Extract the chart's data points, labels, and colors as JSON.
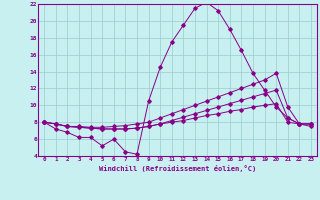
{
  "title": "",
  "xlabel": "Windchill (Refroidissement éolien,°C)",
  "ylabel": "",
  "bg_color": "#c8f0f0",
  "line_color": "#880088",
  "grid_color": "#99cccc",
  "xlim": [
    -0.5,
    23.5
  ],
  "ylim": [
    4,
    22
  ],
  "yticks": [
    4,
    6,
    8,
    10,
    12,
    14,
    16,
    18,
    20,
    22
  ],
  "xticks": [
    0,
    1,
    2,
    3,
    4,
    5,
    6,
    7,
    8,
    9,
    10,
    11,
    12,
    13,
    14,
    15,
    16,
    17,
    18,
    19,
    20,
    21,
    22,
    23
  ],
  "series": [
    [
      8.0,
      7.2,
      6.8,
      6.2,
      6.2,
      5.2,
      6.0,
      4.5,
      4.2,
      10.5,
      14.5,
      17.5,
      19.5,
      21.5,
      22.2,
      21.2,
      19.0,
      16.5,
      13.8,
      11.8,
      9.8,
      8.5,
      7.8,
      7.5
    ],
    [
      8.0,
      7.8,
      7.5,
      7.5,
      7.4,
      7.4,
      7.5,
      7.6,
      7.8,
      8.0,
      8.5,
      9.0,
      9.5,
      10.0,
      10.5,
      11.0,
      11.5,
      12.0,
      12.5,
      13.0,
      13.8,
      9.8,
      7.8,
      7.8
    ],
    [
      8.0,
      7.8,
      7.5,
      7.4,
      7.3,
      7.2,
      7.2,
      7.2,
      7.3,
      7.5,
      7.8,
      8.2,
      8.6,
      9.0,
      9.4,
      9.8,
      10.2,
      10.6,
      11.0,
      11.4,
      11.8,
      8.5,
      7.8,
      7.8
    ],
    [
      8.0,
      7.8,
      7.5,
      7.4,
      7.3,
      7.2,
      7.2,
      7.2,
      7.3,
      7.5,
      7.8,
      8.0,
      8.2,
      8.5,
      8.8,
      9.0,
      9.3,
      9.5,
      9.8,
      10.0,
      10.2,
      8.0,
      7.8,
      7.8
    ]
  ]
}
